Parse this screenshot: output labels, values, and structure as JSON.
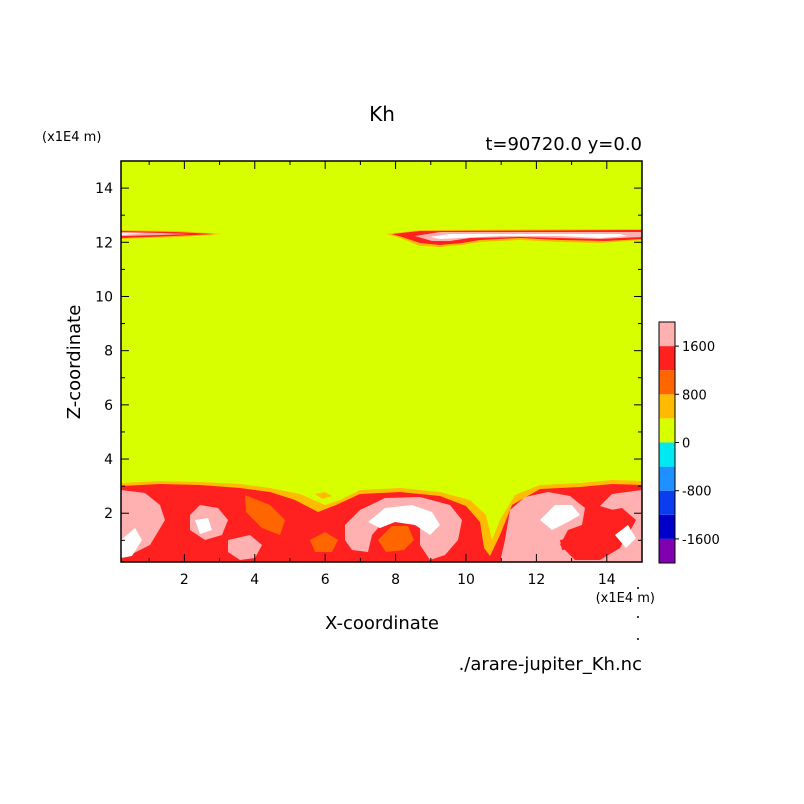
{
  "chart_data": {
    "type": "contour",
    "title": "Kh",
    "subtitle": "t=90720.0 y=0.0",
    "xlabel": "X-coordinate",
    "ylabel": "Z-coordinate",
    "x_unit": "(x1E4 m)",
    "y_unit": "(x1E4 m)",
    "file_label": "./arare-jupiter_Kh.nc",
    "xlim": [
      0.2,
      15.0
    ],
    "ylim": [
      0.2,
      15.0
    ],
    "x_ticks": [
      "2",
      "4",
      "6",
      "8",
      "10",
      "12",
      "14"
    ],
    "y_ticks": [
      "2",
      "4",
      "6",
      "8",
      "10",
      "12",
      "14"
    ],
    "x_tick_values": [
      2,
      4,
      6,
      8,
      10,
      12,
      14
    ],
    "y_tick_values": [
      2,
      4,
      6,
      8,
      10,
      12,
      14
    ],
    "colorbar": {
      "levels": [
        -2000,
        -1600,
        -1200,
        -800,
        -400,
        0,
        400,
        800,
        1200,
        1600,
        2000
      ],
      "colors": [
        "#8000b0",
        "#0000c8",
        "#0a3cf0",
        "#1e90ff",
        "#00e8f0",
        "#d8ff00",
        "#ffbb00",
        "#ff6600",
        "#ff2020",
        "#ffb0b0"
      ],
      "tick_labels": [
        "1600",
        "800",
        "0",
        "-800",
        "-1600"
      ],
      "tick_values": [
        1600,
        800,
        0,
        -800,
        -1600
      ]
    },
    "background_band": "0 to 400",
    "regions": [
      {
        "name": "upper-layer-left",
        "x": [
          0.2,
          3.0
        ],
        "z": [
          11.95,
          12.35
        ],
        "max_band": "1600+"
      },
      {
        "name": "upper-layer-right",
        "x": [
          7.5,
          15.0
        ],
        "z": [
          11.75,
          12.35
        ],
        "max_band": "1600+"
      },
      {
        "name": "lower-turbulent-layer",
        "x": [
          0.2,
          15.0
        ],
        "z": [
          0.2,
          3.05
        ],
        "max_band": "1600+"
      }
    ]
  }
}
